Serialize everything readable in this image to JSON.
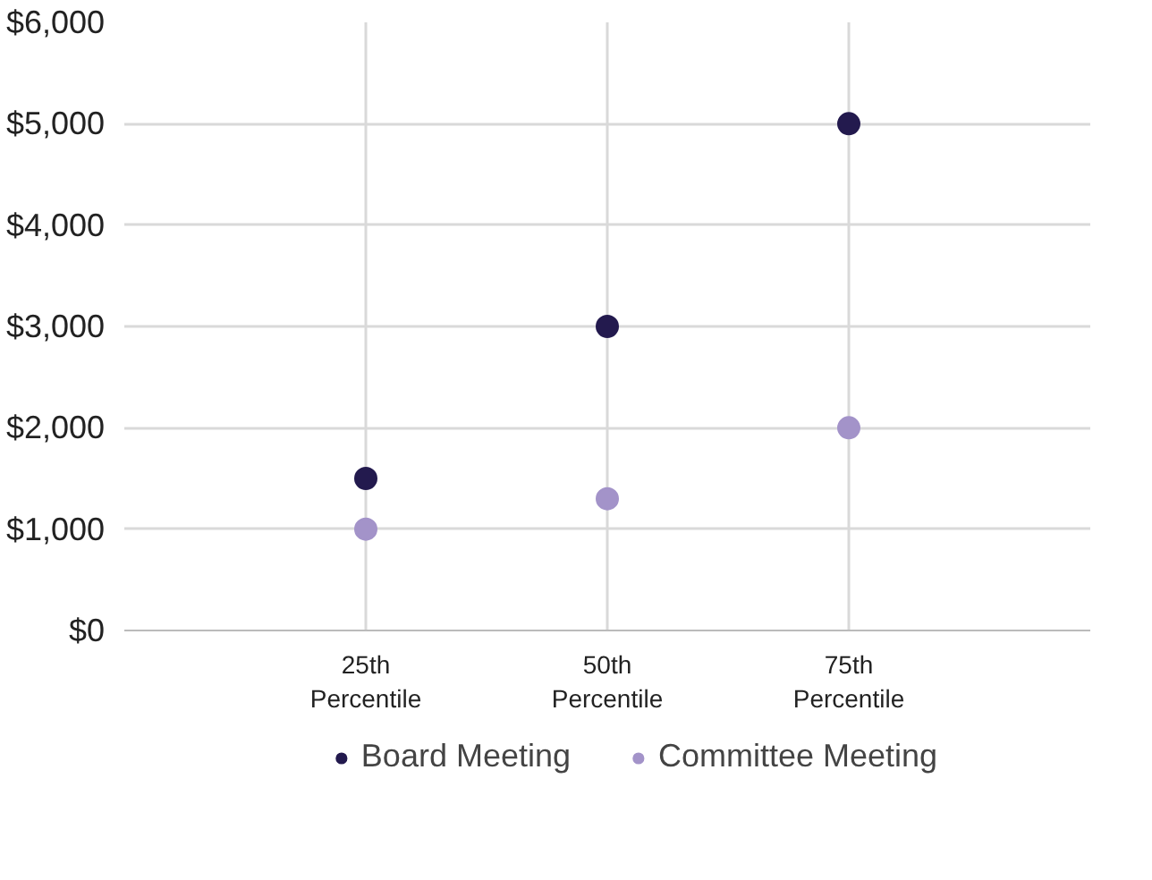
{
  "chart_data": {
    "type": "scatter",
    "categories": [
      "25th\nPercentile",
      "50th\nPercentile",
      "75th\nPercentile"
    ],
    "series": [
      {
        "name": "Board Meeting",
        "color": "#231a4e",
        "values": [
          1500,
          3000,
          5000
        ]
      },
      {
        "name": "Committee Meeting",
        "color": "#a393c9",
        "values": [
          1000,
          1300,
          2000
        ]
      }
    ],
    "ylim": [
      0,
      6000
    ],
    "yticks": [
      {
        "value": 0,
        "label": "$0"
      },
      {
        "value": 1000,
        "label": "$1,000"
      },
      {
        "value": 2000,
        "label": "$2,000"
      },
      {
        "value": 3000,
        "label": "$3,000"
      },
      {
        "value": 4000,
        "label": "$4,000"
      },
      {
        "value": 5000,
        "label": "$5,000"
      },
      {
        "value": 6000,
        "label": "$6,000"
      }
    ],
    "grid": true,
    "legend": "bottom",
    "marker": "circle"
  }
}
